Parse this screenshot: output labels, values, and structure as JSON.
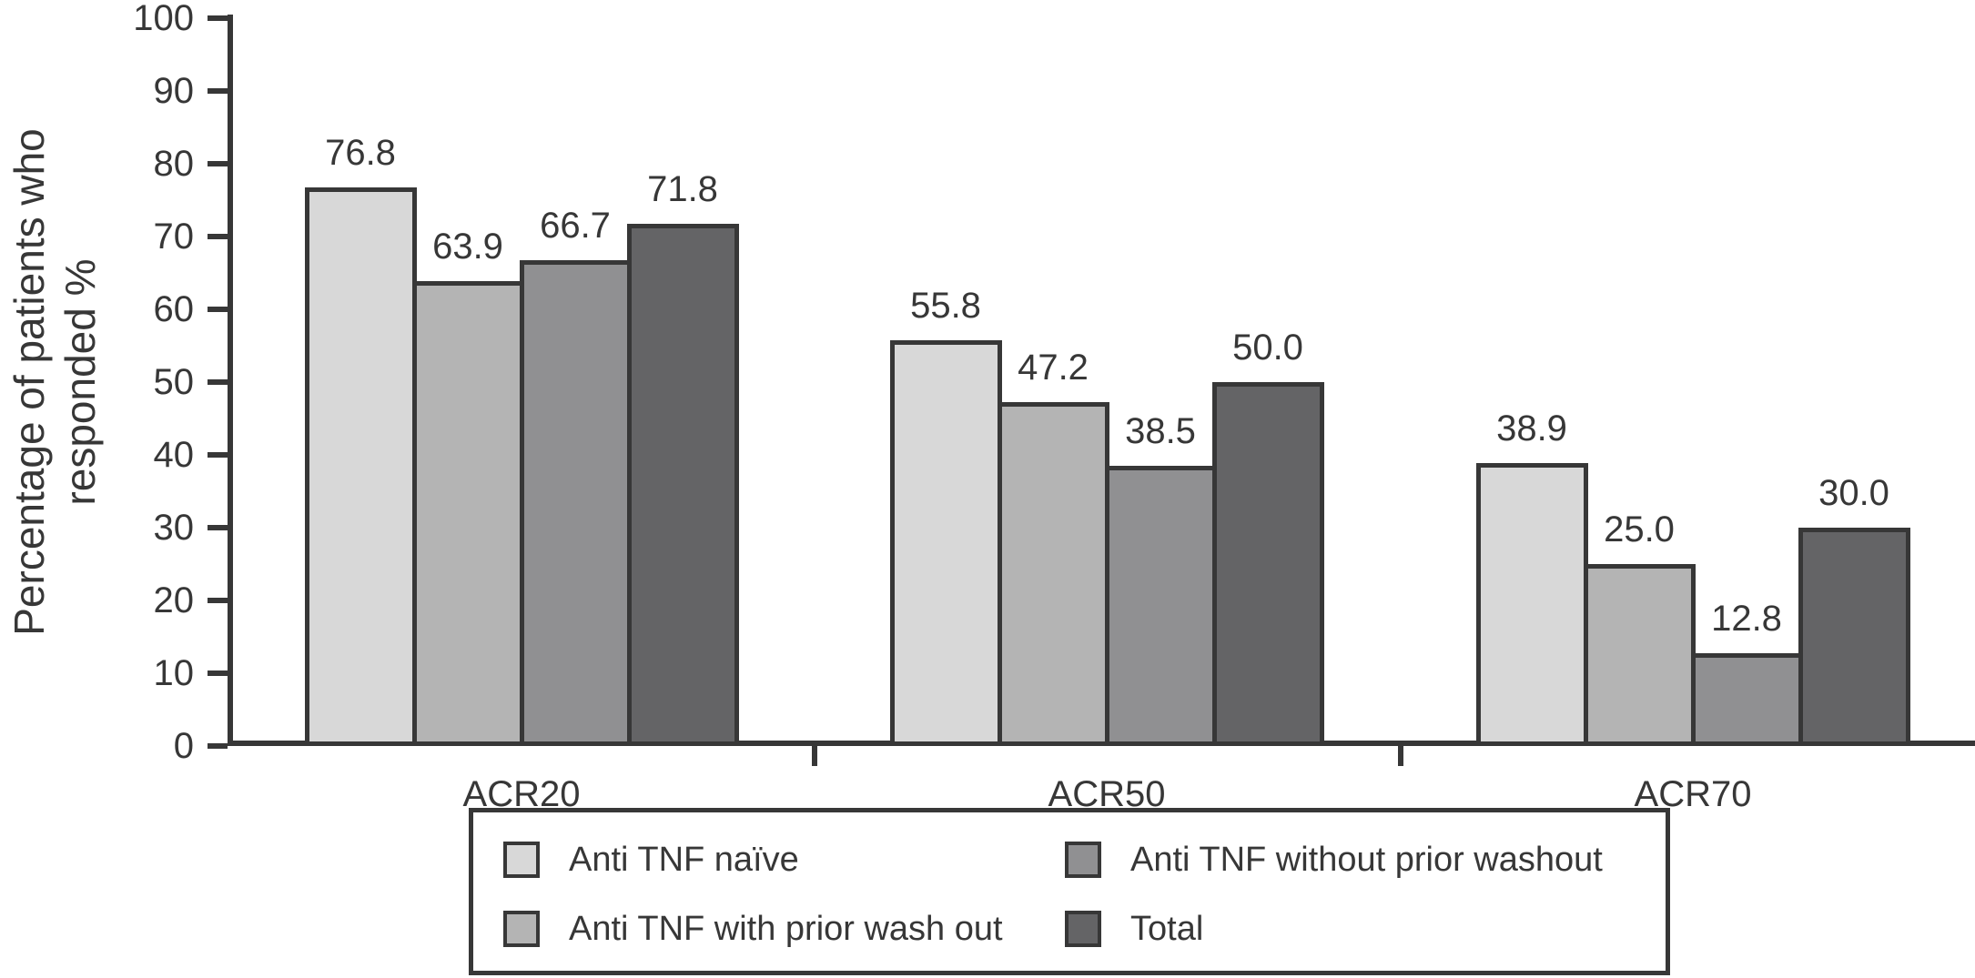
{
  "chart_data": {
    "type": "bar",
    "title": "",
    "ylabel": "Percentage of patients who responded %",
    "ylabel_lines": [
      "Percentage of patients who",
      "responded %"
    ],
    "xlabel": "",
    "categories": [
      "ACR20",
      "ACR50",
      "ACR70"
    ],
    "series": [
      {
        "name": "Anti TNF naïve",
        "color": "#d8d8d8",
        "values": [
          76.8,
          55.8,
          38.9
        ]
      },
      {
        "name": "Anti TNF with prior wash out",
        "color": "#b4b4b4",
        "values": [
          63.9,
          47.2,
          25.0
        ]
      },
      {
        "name": "Anti TNF without prior washout",
        "color": "#909092",
        "values": [
          66.7,
          38.5,
          12.8
        ]
      },
      {
        "name": "Total",
        "color": "#646466",
        "values": [
          71.8,
          50.0,
          30.0
        ]
      }
    ],
    "value_labels": [
      [
        "76.8",
        "63.9",
        "66.7",
        "71.8"
      ],
      [
        "55.8",
        "47.2",
        "38.5",
        "50.0"
      ],
      [
        "38.9",
        "25.0",
        "12.8",
        "30.0"
      ]
    ],
    "ylim": [
      0,
      100
    ],
    "yticks": [
      0,
      10,
      20,
      30,
      40,
      50,
      60,
      70,
      80,
      90,
      100
    ],
    "grid": false,
    "legend_position": "bottom",
    "legend_columns_order": [
      "Anti TNF naïve",
      "Anti TNF without prior washout",
      "Anti TNF with prior wash out",
      "Total"
    ],
    "axis_color": "#373737",
    "background_color": "#ffffff"
  }
}
